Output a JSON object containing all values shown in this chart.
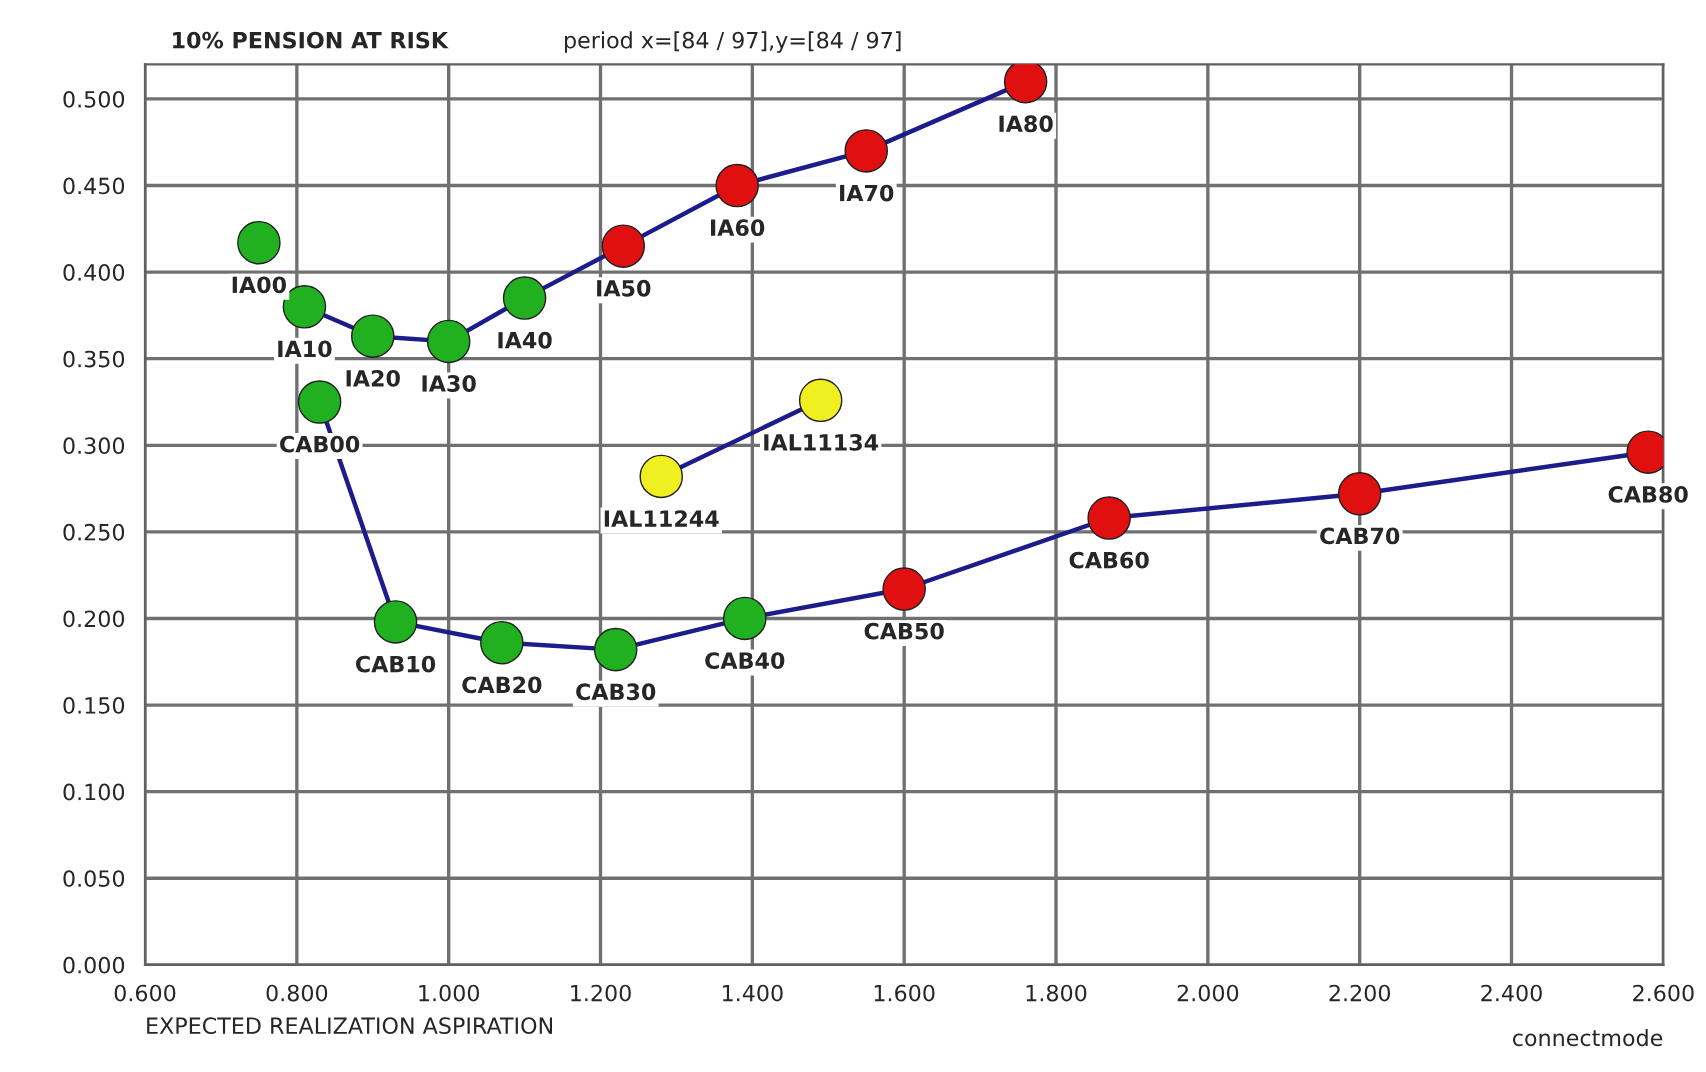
{
  "chart_data": {
    "type": "line",
    "title": "10% PENSION AT RISK",
    "subtitle": "period x=[84 / 97],y=[84 / 97]",
    "xlabel": "EXPECTED REALIZATION ASPIRATION",
    "xlim": [
      0.6,
      2.6
    ],
    "xticks": [
      {
        "value": 0.6,
        "label": "0.600"
      },
      {
        "value": 0.8,
        "label": "0.800"
      },
      {
        "value": 1.0,
        "label": "1.000"
      },
      {
        "value": 1.2,
        "label": "1.200"
      },
      {
        "value": 1.4,
        "label": "1.400"
      },
      {
        "value": 1.6,
        "label": "1.600"
      },
      {
        "value": 1.8,
        "label": "1.800"
      },
      {
        "value": 2.0,
        "label": "2.000"
      },
      {
        "value": 2.2,
        "label": "2.200"
      },
      {
        "value": 2.4,
        "label": "2.400"
      },
      {
        "value": 2.6,
        "label": "2.600"
      }
    ],
    "ylim": [
      0,
      0.52
    ],
    "yticks": [
      {
        "value": 0.0,
        "label": "0.000"
      },
      {
        "value": 0.05,
        "label": "0.050"
      },
      {
        "value": 0.1,
        "label": "0.100"
      },
      {
        "value": 0.15,
        "label": "0.150"
      },
      {
        "value": 0.2,
        "label": "0.200"
      },
      {
        "value": 0.25,
        "label": "0.250"
      },
      {
        "value": 0.3,
        "label": "0.300"
      },
      {
        "value": 0.35,
        "label": "0.350"
      },
      {
        "value": 0.4,
        "label": "0.400"
      },
      {
        "value": 0.45,
        "label": "0.450"
      },
      {
        "value": 0.5,
        "label": "0.500"
      }
    ],
    "grid": true,
    "marker": "circle",
    "legend": false,
    "series": [
      {
        "type": "scatter",
        "color": "#20b020",
        "x": [
          0.75
        ],
        "values": [
          0.417
        ]
      },
      {
        "color": "#1c1c8c",
        "x": [
          0.81,
          0.9,
          1.0,
          1.1,
          1.23,
          1.38,
          1.55,
          1.76
        ],
        "values": [
          0.38,
          0.363,
          0.36,
          0.385,
          0.415,
          0.45,
          0.47,
          0.51
        ],
        "colors": [
          "#20b020",
          "#20b020",
          "#20b020",
          "#20b020",
          "#e01010",
          "#e01010",
          "#e01010",
          "#e01010"
        ]
      },
      {
        "color": "#1c1c8c",
        "x": [
          0.83,
          0.93,
          1.07,
          1.22,
          1.39,
          1.6,
          1.87,
          2.2,
          2.58
        ],
        "values": [
          0.325,
          0.198,
          0.186,
          0.182,
          0.2,
          0.217,
          0.258,
          0.272,
          0.296
        ],
        "colors": [
          "#20b020",
          "#20b020",
          "#20b020",
          "#20b020",
          "#20b020",
          "#e01010",
          "#e01010",
          "#e01010",
          "#e01010"
        ]
      },
      {
        "color": "#1c1c8c",
        "x": [
          1.28,
          1.49
        ],
        "values": [
          0.282,
          0.326
        ],
        "colors": [
          "#f0f020",
          "#f0f020"
        ]
      }
    ],
    "annotations": [
      {
        "text": "IA00",
        "x": 0.75,
        "y": 0.417
      },
      {
        "text": "IA10",
        "x": 0.81,
        "y": 0.38
      },
      {
        "text": "IA20",
        "x": 0.9,
        "y": 0.363
      },
      {
        "text": "IA30",
        "x": 1.0,
        "y": 0.36
      },
      {
        "text": "IA40",
        "x": 1.1,
        "y": 0.385
      },
      {
        "text": "IA50",
        "x": 1.23,
        "y": 0.415
      },
      {
        "text": "IA60",
        "x": 1.38,
        "y": 0.45
      },
      {
        "text": "IA70",
        "x": 1.55,
        "y": 0.47
      },
      {
        "text": "IA80",
        "x": 1.76,
        "y": 0.51
      },
      {
        "text": "CAB00",
        "x": 0.83,
        "y": 0.325
      },
      {
        "text": "CAB10",
        "x": 0.93,
        "y": 0.198
      },
      {
        "text": "CAB20",
        "x": 1.07,
        "y": 0.186
      },
      {
        "text": "CAB30",
        "x": 1.22,
        "y": 0.182
      },
      {
        "text": "CAB40",
        "x": 1.39,
        "y": 0.2
      },
      {
        "text": "CAB50",
        "x": 1.6,
        "y": 0.217
      },
      {
        "text": "CAB60",
        "x": 1.87,
        "y": 0.258
      },
      {
        "text": "CAB70",
        "x": 2.2,
        "y": 0.272
      },
      {
        "text": "CAB80",
        "x": 2.58,
        "y": 0.296
      },
      {
        "text": "IAL11244",
        "x": 1.28,
        "y": 0.282
      },
      {
        "text": "IAL11134",
        "x": 1.49,
        "y": 0.326
      },
      "connectmode"
    ]
  }
}
